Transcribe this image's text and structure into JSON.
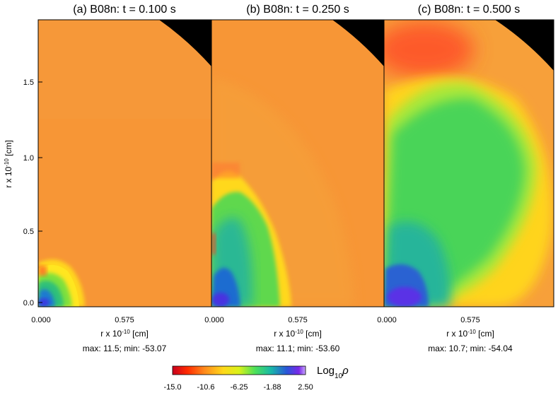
{
  "chart_data": [
    {
      "type": "heatmap",
      "panel_label": "(a)",
      "title": "B08n: t = 0.100 s",
      "xlabel": "r x 10",
      "xlabel_exp": "-10",
      "xlabel_unit": " [cm]",
      "ylabel": "r x 10",
      "ylabel_exp": "-10",
      "ylabel_unit": " [cm]",
      "x_ticks": [
        "0.000",
        "0.575"
      ],
      "y_ticks": [
        "0.0",
        "0.5",
        "1.0",
        "1.5"
      ],
      "xlim": [
        0,
        1.05
      ],
      "ylim": [
        0,
        1.9
      ],
      "stats_text": "max:  11.5; min: -53.07",
      "max": 11.5,
      "min": -53.07,
      "bubble_extent": 0.3
    },
    {
      "type": "heatmap",
      "panel_label": "(b)",
      "title": "B08n: t = 0.250 s",
      "xlabel": "r x 10",
      "xlabel_exp": "-10",
      "xlabel_unit": " [cm]",
      "x_ticks": [
        "0.000",
        "0.575"
      ],
      "xlim": [
        0,
        1.05
      ],
      "ylim": [
        0,
        1.9
      ],
      "stats_text": "max:  11.1; min: -53.60",
      "max": 11.1,
      "min": -53.6,
      "bubble_extent": 0.75
    },
    {
      "type": "heatmap",
      "panel_label": "(c)",
      "title": "B08n: t = 0.500 s",
      "xlabel": "r x 10",
      "xlabel_exp": "-10",
      "xlabel_unit": " [cm]",
      "x_ticks": [
        "0.000",
        "0.575"
      ],
      "xlim": [
        0,
        1.05
      ],
      "ylim": [
        0,
        1.9
      ],
      "stats_text": "max:  10.7; min: -54.04",
      "max": 10.7,
      "min": -54.04,
      "bubble_extent": 1.5
    }
  ],
  "colorbar": {
    "title": "Log",
    "title_sub": "10",
    "title_var": "ρ",
    "ticks": [
      "-15.0",
      "-10.6",
      "-6.25",
      "-1.88",
      "2.50"
    ],
    "range": [
      -15.0,
      2.5
    ],
    "colors": [
      "#c8001e",
      "#ff2a00",
      "#ff8a1c",
      "#ffd81a",
      "#d9f21a",
      "#4de05a",
      "#19b8a8",
      "#2a55d8",
      "#7a28e8",
      "#c8a8ff"
    ]
  }
}
